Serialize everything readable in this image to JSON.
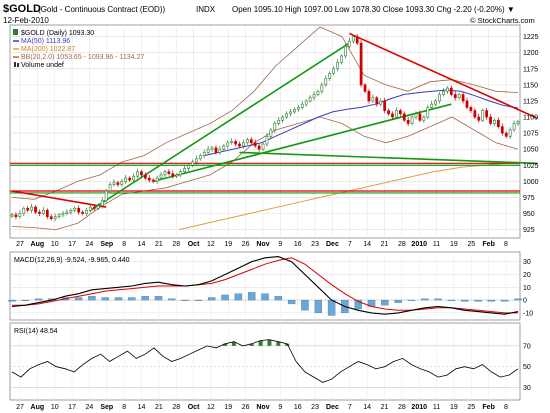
{
  "header": {
    "symbol": "$GOLD",
    "name": "(Gold - Continuous Contract (EOD))",
    "exchange": "INDX",
    "date": "12-Feb-2010",
    "ohlc": "Open 1095.10  High 1097.00  Low 1078.30  Close 1093.30  Chg -2.20 (-0.20%) ▼",
    "credit": "© StockCharts.com"
  },
  "legend": [
    {
      "text": "$GOLD (Daily) 1093.30",
      "swatch": "candle"
    },
    {
      "text": "MA(50) 1113.96",
      "color": "#3c3cc0"
    },
    {
      "text": "MA(200) 1022.87",
      "color": "#e0a040"
    },
    {
      "text": "BB(20,2.0) 1053.65 - 1093.96 - 1134.27",
      "color": "#b07050"
    },
    {
      "text": "Volume undef",
      "swatch": "volume"
    }
  ],
  "colors": {
    "up": "#2e7d32",
    "down": "#cc0000",
    "ma50": "#3c3cc0",
    "ma200": "#e0a040",
    "bb": "#a06848",
    "trend_red": "#dd0000",
    "trend_green": "#119911",
    "macd_hist": "#6aa6d8",
    "rsi_fill": "#3a7a3a"
  },
  "chart_data": {
    "type": "candlestick",
    "price_axis": {
      "ticks": [
        925,
        950,
        975,
        1000,
        1025,
        1050,
        1075,
        1100,
        1125,
        1150,
        1175,
        1200,
        1225
      ],
      "range": [
        915,
        1240
      ]
    },
    "x_tick_labels": [
      "27",
      "Aug",
      "10",
      "17",
      "24",
      "Sep",
      "8",
      "14",
      "21",
      "28",
      "Oct",
      "12",
      "19",
      "26",
      "Nov",
      "9",
      "16",
      "23",
      "Dec",
      "7",
      "14",
      "21",
      "28",
      "2010",
      "11",
      "19",
      "25",
      "Feb",
      "8"
    ],
    "bold_x_labels": [
      "Aug",
      "Sep",
      "Oct",
      "Nov",
      "Dec",
      "2010",
      "Feb"
    ],
    "price_closes": [
      948,
      945,
      950,
      958,
      955,
      960,
      952,
      950,
      955,
      945,
      942,
      945,
      948,
      950,
      952,
      955,
      958,
      952,
      950,
      955,
      960,
      958,
      962,
      970,
      985,
      995,
      998,
      995,
      1000,
      1005,
      1002,
      1008,
      1015,
      1010,
      1005,
      1002,
      1000,
      1005,
      1010,
      1015,
      1012,
      1008,
      1010,
      1015,
      1020,
      1025,
      1030,
      1035,
      1040,
      1045,
      1050,
      1052,
      1045,
      1050,
      1055,
      1060,
      1062,
      1058,
      1055,
      1060,
      1065,
      1060,
      1055,
      1050,
      1058,
      1070,
      1080,
      1090,
      1095,
      1100,
      1105,
      1108,
      1112,
      1115,
      1120,
      1125,
      1130,
      1135,
      1140,
      1150,
      1160,
      1168,
      1175,
      1185,
      1195,
      1210,
      1218,
      1225,
      1215,
      1150,
      1140,
      1125,
      1130,
      1120,
      1125,
      1110,
      1105,
      1100,
      1110,
      1105,
      1095,
      1090,
      1100,
      1105,
      1095,
      1100,
      1115,
      1120,
      1125,
      1135,
      1140,
      1145,
      1135,
      1130,
      1135,
      1125,
      1115,
      1110,
      1100,
      1095,
      1110,
      1100,
      1090,
      1095,
      1085,
      1075,
      1070,
      1080,
      1090,
      1093
    ],
    "ma50": [
      1040,
      1045,
      1050,
      1055,
      1060,
      1070,
      1080,
      1090,
      1100,
      1108,
      1112,
      1115,
      1120,
      1128,
      1135,
      1138,
      1140,
      1142,
      1140,
      1133,
      1125,
      1118,
      1114
    ],
    "ma200": [
      925,
      935,
      945,
      955,
      965,
      975,
      985,
      995,
      1005,
      1015,
      1022,
      1026,
      1030
    ],
    "bb_upper": [
      975,
      972,
      985,
      1000,
      1010,
      1030,
      1040,
      1060,
      1075,
      1090,
      1110,
      1140,
      1180,
      1210,
      1240,
      1225,
      1165,
      1150,
      1140,
      1155,
      1158,
      1150,
      1140,
      1138
    ],
    "bb_lower": [
      930,
      928,
      925,
      935,
      960,
      980,
      985,
      990,
      1000,
      1010,
      1030,
      1060,
      1080,
      1090,
      1100,
      1090,
      1070,
      1060,
      1070,
      1085,
      1100,
      1080,
      1060,
      1050
    ],
    "trendlines": [
      {
        "name": "red-down-aug",
        "points": [
          [
            0,
            985
          ],
          [
            24,
            960
          ]
        ],
        "color": "red"
      },
      {
        "name": "red-down-dec",
        "points": [
          [
            86,
            1230
          ],
          [
            134,
            1098
          ]
        ],
        "color": "red"
      },
      {
        "name": "green-up-1",
        "points": [
          [
            20,
            955
          ],
          [
            86,
            1215
          ]
        ],
        "color": "green"
      },
      {
        "name": "green-up-2",
        "points": [
          [
            36,
            1000
          ],
          [
            112,
            1120
          ]
        ],
        "color": "green"
      },
      {
        "name": "green-up-3",
        "points": [
          [
            58,
            1045
          ],
          [
            134,
            1028
          ]
        ],
        "color": "green"
      }
    ],
    "horizontal_lines": [
      {
        "value": 1028,
        "color": "red"
      },
      {
        "value": 1025,
        "color": "green"
      },
      {
        "value": 985,
        "color": "red"
      },
      {
        "value": 982,
        "color": "green"
      }
    ],
    "macd": {
      "label": "MACD(12,26,9) -9.524, -9.965, 0.440",
      "ticks": [
        30,
        20,
        10,
        0,
        -10
      ],
      "range": [
        -14,
        36
      ],
      "macd": [
        -5,
        -4,
        -2,
        0,
        3,
        5,
        8,
        9,
        10,
        11,
        13,
        14,
        12,
        11,
        12,
        15,
        20,
        25,
        30,
        33,
        34,
        30,
        20,
        10,
        0,
        -5,
        -8,
        -10,
        -11,
        -10,
        -8,
        -6,
        -5,
        -6,
        -8,
        -9,
        -10,
        -11,
        -9
      ],
      "signal": [
        -4,
        -4,
        -3,
        -1,
        1,
        3,
        5,
        7,
        8,
        9,
        10,
        11,
        11,
        11,
        12,
        13,
        16,
        20,
        24,
        28,
        31,
        33,
        28,
        20,
        12,
        5,
        -1,
        -5,
        -7,
        -8,
        -8,
        -7,
        -6,
        -6,
        -7,
        -8,
        -9,
        -10,
        -10
      ]
    },
    "rsi": {
      "label": "RSI(14) 48.54",
      "ticks": [
        70,
        50,
        30
      ],
      "range": [
        20,
        90
      ],
      "values": [
        45,
        40,
        48,
        52,
        55,
        50,
        48,
        45,
        52,
        58,
        62,
        55,
        60,
        65,
        58,
        62,
        68,
        60,
        55,
        58,
        62,
        66,
        70,
        68,
        72,
        74,
        70,
        72,
        75,
        76,
        74,
        72,
        55,
        45,
        40,
        35,
        38,
        45,
        50,
        55,
        52,
        48,
        50,
        55,
        58,
        52,
        48,
        45,
        40,
        42,
        48,
        50,
        48,
        52,
        45,
        40,
        42,
        48
      ]
    }
  }
}
